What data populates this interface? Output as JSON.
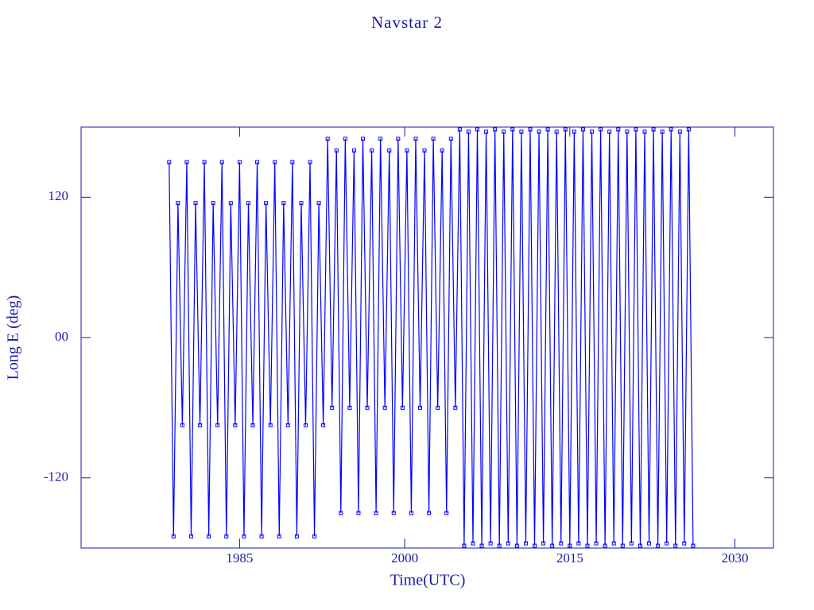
{
  "chart_data": {
    "type": "line",
    "title": "Navstar 2",
    "x_label": "Time(UTC)",
    "y_label": "Long E (deg)",
    "xlim": [
      1970.6,
      2033.5
    ],
    "ylim": [
      -180,
      180
    ],
    "xticks": [
      1985,
      2000,
      2015,
      2030
    ],
    "yticks": [
      -120,
      {
        "value": 0,
        "label": "00"
      },
      120
    ],
    "frame_color": "#1a1aa8",
    "x": [
      1978.6,
      1979.0,
      1979.4,
      1979.8,
      1980.2,
      1980.6,
      1981.0,
      1981.4,
      1981.8,
      1982.2,
      1982.6,
      1983.0,
      1983.4,
      1983.8,
      1984.2,
      1984.6,
      1985.0,
      1985.4,
      1985.8,
      1986.2,
      1986.6,
      1987.0,
      1987.4,
      1987.8,
      1988.2,
      1988.6,
      1989.0,
      1989.4,
      1989.8,
      1990.2,
      1990.6,
      1991.0,
      1991.4,
      1991.8,
      1992.2,
      1992.6,
      1993.0,
      1993.4,
      1993.8,
      1994.2,
      1994.6,
      1995.0,
      1995.4,
      1995.8,
      1996.2,
      1996.6,
      1997.0,
      1997.4,
      1997.8,
      1998.2,
      1998.6,
      1999.0,
      1999.4,
      1999.8,
      2000.2,
      2000.6,
      2001.0,
      2001.4,
      2001.8,
      2002.2,
      2002.6,
      2003.0,
      2003.4,
      2003.8,
      2004.2,
      2004.6,
      2005.0,
      2005.4,
      2005.8,
      2006.2,
      2006.6,
      2007.0,
      2007.4,
      2007.8,
      2008.2,
      2008.6,
      2009.0,
      2009.4,
      2009.8,
      2010.2,
      2010.6,
      2011.0,
      2011.4,
      2011.8,
      2012.2,
      2012.6,
      2013.0,
      2013.4,
      2013.8,
      2014.2,
      2014.6,
      2015.0,
      2015.4,
      2015.8,
      2016.2,
      2016.6,
      2017.0,
      2017.4,
      2017.8,
      2018.2,
      2018.6,
      2019.0,
      2019.4,
      2019.8,
      2020.2,
      2020.6,
      2021.0,
      2021.4,
      2021.8,
      2022.2,
      2022.6,
      2023.0,
      2023.4,
      2023.8,
      2024.2,
      2024.6,
      2025.0,
      2025.4,
      2025.8,
      2026.2
    ],
    "series": [
      {
        "color": "#0000ff",
        "values": [
          150,
          -170,
          115,
          -75,
          150,
          -170,
          115,
          -75,
          150,
          -170,
          115,
          -75,
          150,
          -170,
          115,
          -75,
          150,
          -170,
          115,
          -75,
          150,
          -170,
          115,
          -75,
          150,
          -170,
          115,
          -75,
          150,
          -170,
          115,
          -75,
          150,
          -170,
          115,
          -75,
          170,
          -60,
          160,
          -150,
          170,
          -60,
          160,
          -150,
          170,
          -60,
          160,
          -150,
          170,
          -60,
          160,
          -150,
          170,
          -60,
          160,
          -150,
          170,
          -60,
          160,
          -150,
          170,
          -60,
          160,
          -150,
          170,
          -60,
          178,
          -178,
          176,
          -176,
          178,
          -178,
          176,
          -176,
          178,
          -178,
          176,
          -176,
          178,
          -178,
          176,
          -176,
          178,
          -178,
          176,
          -176,
          178,
          -178,
          176,
          -176,
          178,
          -178,
          176,
          -176,
          178,
          -178,
          176,
          -176,
          178,
          -178,
          176,
          -176,
          178,
          -178,
          176,
          -176,
          178,
          -178,
          176,
          -176,
          178,
          -178,
          176,
          -176,
          178,
          -178,
          176,
          -176,
          178,
          -178
        ]
      }
    ]
  }
}
